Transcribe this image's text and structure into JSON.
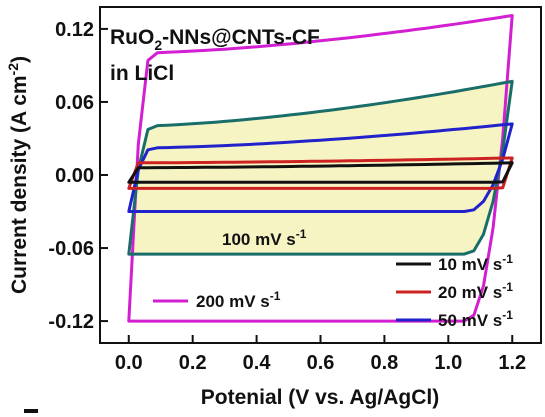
{
  "chart_data": {
    "type": "line",
    "title": "",
    "annotations": {
      "material_main": "RuO",
      "material_sub": "2",
      "material_rest": "-NNs@CNTs-CF",
      "electrolyte": "in LiCl",
      "highlight_label": "100 mV s",
      "highlight_label_exp": "-1",
      "pink_label": "200 mV s",
      "pink_label_exp": "-1"
    },
    "xlabel": "Potenial (V vs. Ag/AgCl)",
    "ylabel_main": "Current density (A cm",
    "ylabel_exp": "-2",
    "ylabel_close": ")",
    "xlim": [
      -0.09,
      1.29
    ],
    "ylim": [
      -0.138,
      0.138
    ],
    "x_ticks": [
      "0.0",
      "0.2",
      "0.4",
      "0.6",
      "0.8",
      "1.0",
      "1.2"
    ],
    "y_ticks": [
      "0.12",
      "0.06",
      "0.00",
      "-0.06",
      "-0.12"
    ],
    "grid": false,
    "legend": {
      "position": "bottom-right",
      "entries": [
        {
          "label": "10 mV s",
          "exp": "-1",
          "color": "#111111"
        },
        {
          "label": "20 mV s",
          "exp": "-1",
          "color": "#cc2222"
        },
        {
          "label": "50 mV s",
          "exp": "-1",
          "color": "#2222cc"
        }
      ]
    },
    "series": [
      {
        "name": "10 mV s-1",
        "color": "#111111",
        "x": [
          0.0,
          1.2
        ],
        "upper": 0.006,
        "lower": -0.006
      },
      {
        "name": "20 mV s-1",
        "color": "#cc2222",
        "x": [
          0.0,
          1.2
        ],
        "upper": 0.01,
        "lower": -0.011
      },
      {
        "name": "50 mV s-1",
        "color": "#2222cc",
        "x": [
          0.0,
          1.2
        ],
        "upper": 0.022,
        "lower": -0.03,
        "end_max": 0.042
      },
      {
        "name": "100 mV s-1",
        "color": "#1a6e6a",
        "x": [
          0.0,
          1.2
        ],
        "upper": 0.04,
        "lower": -0.065,
        "end_max": 0.077
      },
      {
        "name": "200 mV s-1",
        "color": "#d21fd2",
        "x": [
          0.0,
          1.2
        ],
        "upper": 0.1,
        "lower": -0.12,
        "end_max": 0.131
      }
    ],
    "fill_color": "#f7f4c4"
  }
}
